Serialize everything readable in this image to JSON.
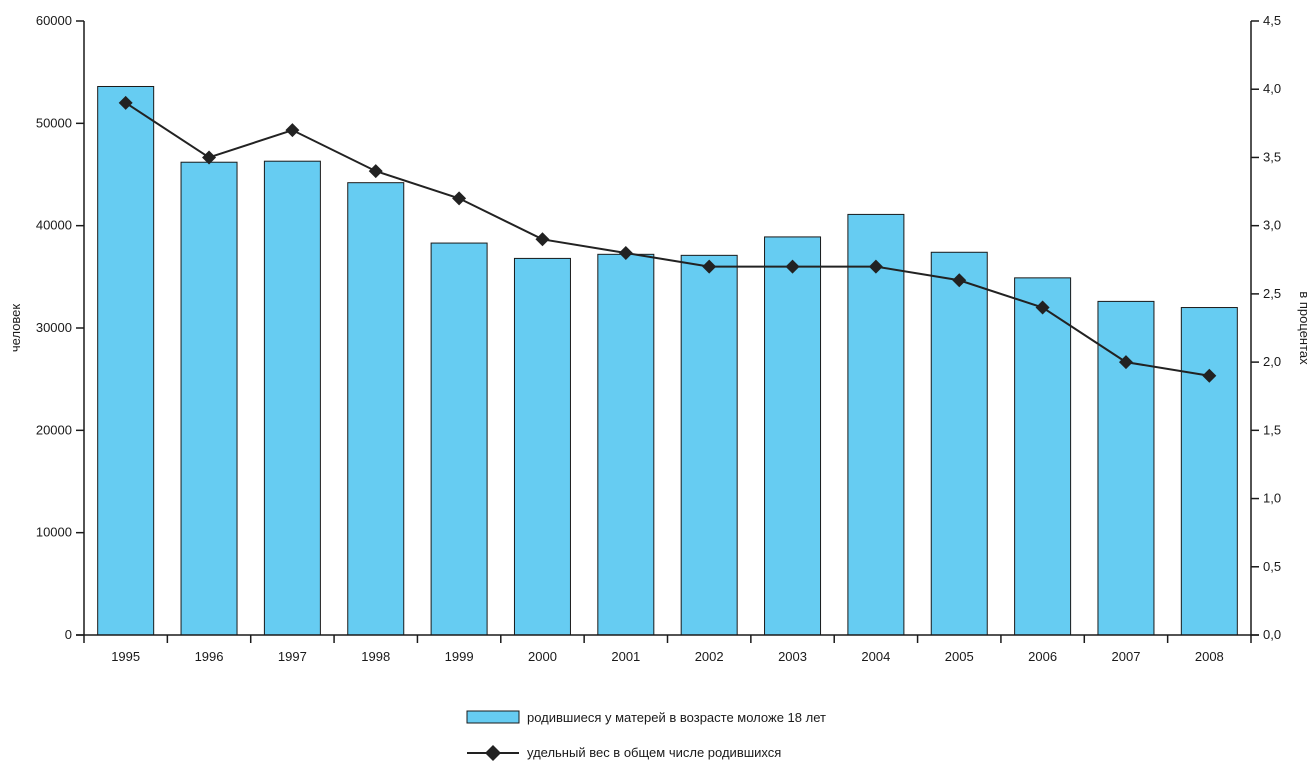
{
  "chart_data": {
    "type": "bar",
    "categories": [
      "1995",
      "1996",
      "1997",
      "1998",
      "1999",
      "2000",
      "2001",
      "2002",
      "2003",
      "2004",
      "2005",
      "2006",
      "2007",
      "2008"
    ],
    "series": [
      {
        "name": "родившиеся у матерей в возрасте моложе 18 лет",
        "type": "bar",
        "axis": "left",
        "color": "#66ccf2",
        "values": [
          53600,
          46200,
          46300,
          44200,
          38300,
          36800,
          37200,
          37100,
          38900,
          41100,
          37400,
          34900,
          32600,
          32000
        ]
      },
      {
        "name": "удельный вес в общем числе родившихся",
        "type": "line",
        "axis": "right",
        "color": "#222222",
        "marker": "diamond",
        "values": [
          3.9,
          3.5,
          3.7,
          3.4,
          3.2,
          2.9,
          2.8,
          2.7,
          2.7,
          2.7,
          2.6,
          2.4,
          2.0,
          1.9
        ]
      }
    ],
    "left_axis": {
      "label": "человек",
      "ylim": [
        0,
        60000
      ],
      "ticks": [
        "0",
        "10000",
        "20000",
        "30000",
        "40000",
        "50000",
        "60000"
      ],
      "tick_values": [
        0,
        10000,
        20000,
        30000,
        40000,
        50000,
        60000
      ]
    },
    "right_axis": {
      "label": "в процентах",
      "ylim": [
        0,
        4.5
      ],
      "ticks": [
        "0,0",
        "0,5",
        "1,0",
        "1,5",
        "2,0",
        "2,5",
        "3,0",
        "3,5",
        "4,0",
        "4,5"
      ],
      "tick_values": [
        0,
        0.5,
        1.0,
        1.5,
        2.0,
        2.5,
        3.0,
        3.5,
        4.0,
        4.5
      ]
    },
    "grid": false,
    "legend_position": "bottom-center"
  }
}
